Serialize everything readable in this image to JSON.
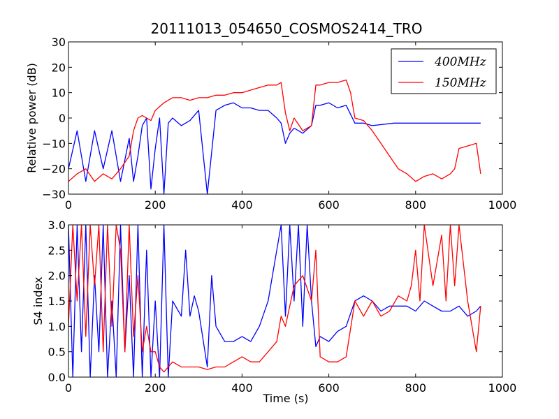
{
  "title": "20111013_054650_COSMOS2414_TRO",
  "chart_data": [
    {
      "type": "line",
      "title": "20111013_054650_COSMOS2414_TRO",
      "xlabel": "",
      "ylabel": "Relative power (dB)",
      "xlim": [
        0,
        1000
      ],
      "ylim": [
        -30,
        30
      ],
      "xticks": [
        "0",
        "200",
        "400",
        "600",
        "800",
        "1000"
      ],
      "yticks": [
        "−30",
        "−20",
        "−10",
        "0",
        "10",
        "20",
        "30"
      ],
      "grid": false,
      "legend_position": "top-right",
      "series": [
        {
          "name": "400MHz",
          "color": "#0000ff",
          "x": [
            0,
            20,
            40,
            60,
            80,
            100,
            120,
            140,
            150,
            160,
            170,
            180,
            190,
            200,
            210,
            220,
            230,
            240,
            260,
            280,
            300,
            320,
            340,
            360,
            380,
            400,
            420,
            440,
            460,
            480,
            490,
            500,
            510,
            520,
            540,
            560,
            570,
            580,
            600,
            620,
            640,
            660,
            680,
            700,
            750,
            800,
            850,
            900,
            950
          ],
          "y": [
            -20,
            -5,
            -25,
            -5,
            -20,
            -5,
            -25,
            -8,
            -25,
            -15,
            -3,
            0,
            -28,
            -12,
            0,
            -30,
            -2,
            0,
            -3,
            -1,
            3,
            -30,
            3,
            5,
            6,
            4,
            4,
            3,
            3,
            0,
            -2,
            -10,
            -6,
            -4,
            -6,
            -3,
            5,
            5,
            6,
            4,
            5,
            -2,
            -2,
            -3,
            -2,
            -2,
            -2,
            -2,
            -2
          ]
        },
        {
          "name": "150MHz",
          "color": "#ff0000",
          "x": [
            0,
            20,
            40,
            60,
            80,
            100,
            120,
            140,
            150,
            160,
            170,
            180,
            190,
            200,
            220,
            240,
            260,
            280,
            300,
            320,
            340,
            360,
            380,
            400,
            420,
            440,
            460,
            480,
            490,
            500,
            510,
            520,
            540,
            560,
            570,
            580,
            600,
            620,
            640,
            650,
            660,
            680,
            700,
            720,
            740,
            760,
            780,
            800,
            820,
            840,
            860,
            880,
            890,
            900,
            920,
            940,
            950
          ],
          "y": [
            -25,
            -22,
            -20,
            -25,
            -22,
            -24,
            -20,
            -15,
            -5,
            0,
            1,
            0,
            -1,
            3,
            6,
            8,
            8,
            7,
            8,
            8,
            9,
            9,
            10,
            10,
            11,
            12,
            13,
            13,
            14,
            2,
            -5,
            0,
            -5,
            -3,
            13,
            13,
            14,
            14,
            15,
            10,
            0,
            -1,
            -5,
            -10,
            -15,
            -20,
            -22,
            -25,
            -23,
            -22,
            -24,
            -22,
            -20,
            -12,
            -11,
            -10,
            -22
          ]
        }
      ]
    },
    {
      "type": "line",
      "title": "",
      "xlabel": "Time (s)",
      "ylabel": "S4 index",
      "xlim": [
        0,
        1000
      ],
      "ylim": [
        0,
        3
      ],
      "xticks": [
        "0",
        "200",
        "400",
        "600",
        "800",
        "1000"
      ],
      "yticks": [
        "0.0",
        "0.5",
        "1.0",
        "1.5",
        "2.0",
        "2.5",
        "3.0"
      ],
      "grid": false,
      "series": [
        {
          "name": "400MHz",
          "color": "#0000ff",
          "x": [
            0,
            10,
            20,
            30,
            40,
            50,
            60,
            70,
            80,
            90,
            100,
            110,
            120,
            130,
            140,
            150,
            160,
            170,
            180,
            190,
            200,
            210,
            220,
            230,
            240,
            260,
            270,
            280,
            290,
            300,
            320,
            330,
            340,
            360,
            380,
            400,
            420,
            440,
            460,
            480,
            490,
            500,
            510,
            520,
            530,
            540,
            550,
            560,
            570,
            580,
            600,
            620,
            640,
            660,
            680,
            700,
            720,
            740,
            760,
            780,
            800,
            820,
            840,
            860,
            880,
            900,
            920,
            940,
            950
          ],
          "y": [
            3,
            0,
            3,
            0.5,
            3,
            0,
            2,
            0.5,
            3,
            0,
            1.5,
            0,
            3,
            0.5,
            2,
            0,
            3,
            0,
            2.5,
            0,
            1.5,
            0,
            3,
            0,
            1.5,
            1.2,
            2.5,
            1.2,
            1.6,
            1.3,
            0.2,
            2,
            1,
            0.7,
            0.7,
            0.8,
            0.7,
            1,
            1.5,
            2.5,
            3,
            1.2,
            3,
            1.5,
            3,
            1,
            3,
            1.5,
            0.6,
            0.8,
            0.7,
            0.9,
            1,
            1.5,
            1.6,
            1.5,
            1.3,
            1.4,
            1.4,
            1.4,
            1.3,
            1.5,
            1.4,
            1.3,
            1.3,
            1.4,
            1.2,
            1.3,
            1.4
          ]
        },
        {
          "name": "150MHz",
          "color": "#ff0000",
          "x": [
            0,
            10,
            20,
            30,
            40,
            50,
            60,
            70,
            80,
            90,
            100,
            110,
            120,
            130,
            140,
            150,
            160,
            170,
            180,
            190,
            200,
            210,
            220,
            240,
            260,
            280,
            300,
            320,
            340,
            360,
            380,
            400,
            420,
            440,
            460,
            480,
            490,
            500,
            520,
            540,
            560,
            570,
            580,
            600,
            620,
            640,
            660,
            680,
            700,
            720,
            740,
            760,
            780,
            790,
            800,
            810,
            820,
            840,
            860,
            870,
            880,
            890,
            900,
            920,
            940,
            950
          ],
          "y": [
            1,
            3,
            1.5,
            3,
            0.8,
            3,
            1.8,
            3,
            0.5,
            3,
            1,
            3,
            2.5,
            0.5,
            3,
            0.8,
            2,
            0.5,
            1,
            0.5,
            0.5,
            0.2,
            0.1,
            0.3,
            0.2,
            0.2,
            0.2,
            0.15,
            0.2,
            0.2,
            0.3,
            0.4,
            0.3,
            0.3,
            0.5,
            0.7,
            1.2,
            1,
            1.8,
            2,
            1.5,
            2.5,
            0.4,
            0.3,
            0.3,
            0.4,
            1.5,
            1.2,
            1.5,
            1.2,
            1.3,
            1.6,
            1.5,
            1.8,
            2.5,
            1.5,
            3,
            1.8,
            2.8,
            1.5,
            3,
            1.8,
            3,
            1.5,
            0.5,
            1.4
          ]
        }
      ]
    }
  ]
}
